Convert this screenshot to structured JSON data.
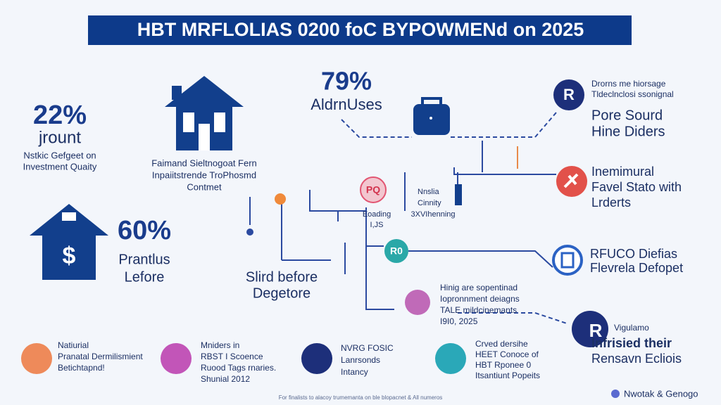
{
  "title": "HBT MRFLOLIAS 0200 foC BYPOWMENd on 2025",
  "left_stat": {
    "value": "22%",
    "label": "jrount",
    "lines": [
      "Nstkic Gefgeet on",
      "Investment Quaity"
    ]
  },
  "house_caption": [
    "Faimand Sieltnogoat Fern",
    "Inpaiitstrende TroPhosmd",
    "Contmet"
  ],
  "center_stat": {
    "value": "79%",
    "label": "AldrnUses"
  },
  "right_panels": [
    {
      "icon": "R",
      "small": [
        "Drorns me hiorsage",
        "Tldeclnclosi ssonignal"
      ],
      "lines": [
        "Pore Sourd",
        "Hine Diders"
      ]
    },
    {
      "lines": [
        "Inemimural",
        "Favel Stato with",
        "Lrderts"
      ]
    },
    {
      "lines": [
        "RFUCO Diefias",
        "Flevrela Defopet"
      ]
    },
    {
      "icon": "R",
      "small": [
        "Vigulamo"
      ],
      "lines": [
        "Infrisied their",
        "Rensavn Ecliois"
      ]
    }
  ],
  "lower_stat": {
    "value": "60%",
    "lines": [
      "Prantlus",
      "Lefore"
    ]
  },
  "middle_label": [
    "Slird before",
    "Degetore"
  ],
  "nodes": [
    {
      "icon": "PQ",
      "labels": [
        "Nnslia",
        "Cinnity",
        "Eoading",
        "I,JS",
        "3XVIhenning"
      ]
    },
    {
      "icon": "R0"
    },
    {
      "labels": [
        "Hinig are sopentinad",
        "Iopronnment deiagns",
        "TALE mildcinemants",
        "I9I0, 2025"
      ]
    }
  ],
  "bottom_items": [
    [
      "Natiurial",
      "Pranatal Dermilismient",
      "Betichtapnd!"
    ],
    [
      "Mniders in",
      "RBST I Scoence",
      "Ruood Tags rnaries.",
      "Shunial 2012"
    ],
    [
      "NVRG FOSIC",
      "Lanrsonds",
      "Intancy"
    ],
    [
      "Crved dersihe",
      "HEET Conoce of",
      "HBT Rponee 0",
      "Itsantiunt Popeits"
    ]
  ],
  "footer": "For finalists to alacoy trumemanta on ble blopacnet & All numeros",
  "brand": "Nwotak & Genogo"
}
